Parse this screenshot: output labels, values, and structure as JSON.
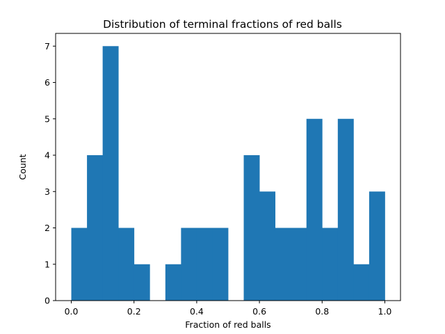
{
  "chart_data": {
    "type": "bar",
    "title": "Distribution of terminal fractions of red balls",
    "xlabel": "Fraction of red balls",
    "ylabel": "Count",
    "bin_edges": [
      0.0,
      0.05,
      0.1,
      0.15,
      0.2,
      0.25,
      0.3,
      0.35,
      0.4,
      0.45,
      0.5,
      0.55,
      0.6,
      0.65,
      0.7,
      0.75,
      0.8,
      0.85,
      0.9,
      0.95,
      1.0
    ],
    "values": [
      2,
      4,
      7,
      2,
      1,
      0,
      1,
      2,
      2,
      2,
      0,
      4,
      3,
      2,
      2,
      5,
      2,
      5,
      1,
      3
    ],
    "xlim": [
      -0.05,
      1.05
    ],
    "ylim": [
      0,
      7.35
    ],
    "xticks": [
      0.0,
      0.2,
      0.4,
      0.6,
      0.8,
      1.0
    ],
    "xtick_labels": [
      "0.0",
      "0.2",
      "0.4",
      "0.6",
      "0.8",
      "1.0"
    ],
    "yticks": [
      0,
      1,
      2,
      3,
      4,
      5,
      6,
      7
    ],
    "ytick_labels": [
      "0",
      "1",
      "2",
      "3",
      "4",
      "5",
      "6",
      "7"
    ],
    "bar_color": "#1f77b4",
    "grid": false,
    "legend": false
  }
}
